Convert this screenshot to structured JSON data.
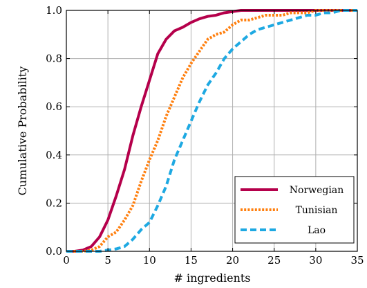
{
  "chart_data": {
    "type": "line",
    "xlabel": "# ingredients",
    "ylabel": "Cumulative Probability",
    "xlim": [
      0,
      35
    ],
    "ylim": [
      0,
      1
    ],
    "xticks": [
      0,
      5,
      10,
      15,
      20,
      25,
      30,
      35
    ],
    "yticks": [
      0.0,
      0.2,
      0.4,
      0.6,
      0.8,
      1.0
    ],
    "ytick_labels": [
      "0.0",
      "0.2",
      "0.4",
      "0.6",
      "0.8",
      "1.0"
    ],
    "grid": true,
    "legend_position": "bottom-right",
    "series": [
      {
        "name": "Norwegian",
        "color": "#b5004b",
        "dash": "solid",
        "x": [
          0,
          1,
          2,
          3,
          4,
          5,
          6,
          7,
          8,
          9,
          10,
          11,
          12,
          13,
          14,
          15,
          16,
          17,
          18,
          19,
          20,
          21,
          22,
          23,
          24,
          25,
          26,
          27,
          28,
          29,
          30,
          31,
          32,
          33,
          34,
          35
        ],
        "y": [
          0.0,
          0.0,
          0.005,
          0.02,
          0.06,
          0.13,
          0.23,
          0.34,
          0.48,
          0.6,
          0.71,
          0.82,
          0.88,
          0.915,
          0.93,
          0.95,
          0.965,
          0.975,
          0.98,
          0.99,
          0.995,
          1.0,
          1.0,
          1.0,
          1.0,
          1.0,
          1.0,
          1.0,
          1.0,
          1.0,
          1.0,
          1.0,
          1.0,
          1.0,
          1.0,
          1.0
        ]
      },
      {
        "name": "Tunisian",
        "color": "#ff7f0e",
        "dash": "dotted",
        "x": [
          0,
          1,
          2,
          3,
          4,
          5,
          6,
          7,
          8,
          9,
          10,
          11,
          12,
          13,
          14,
          15,
          16,
          17,
          18,
          19,
          20,
          21,
          22,
          23,
          24,
          25,
          26,
          27,
          28,
          29,
          30,
          31,
          32,
          33,
          34,
          35
        ],
        "y": [
          0.0,
          0.0,
          0.0,
          0.005,
          0.02,
          0.06,
          0.08,
          0.13,
          0.19,
          0.29,
          0.38,
          0.46,
          0.56,
          0.64,
          0.72,
          0.78,
          0.83,
          0.88,
          0.9,
          0.91,
          0.94,
          0.96,
          0.96,
          0.97,
          0.98,
          0.98,
          0.98,
          0.99,
          0.99,
          0.99,
          1.0,
          1.0,
          1.0,
          1.0,
          1.0,
          1.0
        ]
      },
      {
        "name": "Lao",
        "color": "#1ea9e2",
        "dash": "dashed",
        "x": [
          0,
          1,
          2,
          3,
          4,
          5,
          6,
          7,
          8,
          9,
          10,
          11,
          12,
          13,
          14,
          15,
          16,
          17,
          18,
          19,
          20,
          21,
          22,
          23,
          24,
          25,
          26,
          27,
          28,
          29,
          30,
          31,
          32,
          33,
          34,
          35
        ],
        "y": [
          0.0,
          0.0,
          0.0,
          0.0,
          0.0,
          0.005,
          0.01,
          0.02,
          0.05,
          0.09,
          0.12,
          0.19,
          0.27,
          0.38,
          0.46,
          0.54,
          0.62,
          0.69,
          0.74,
          0.8,
          0.84,
          0.87,
          0.9,
          0.92,
          0.93,
          0.94,
          0.95,
          0.96,
          0.97,
          0.98,
          0.98,
          0.99,
          0.99,
          1.0,
          1.0,
          1.0
        ]
      }
    ]
  }
}
